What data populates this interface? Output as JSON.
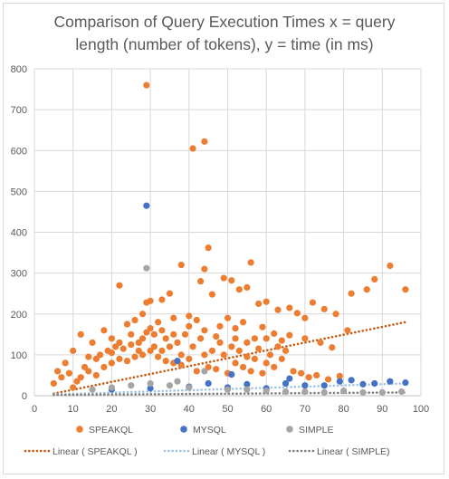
{
  "chart_data": {
    "type": "scatter",
    "title": "Comparison of Query Execution Times x = query length (number of tokens), y = time (in ms)",
    "title_lines": [
      "Comparison of Query Execution Times x = query",
      "length (number of tokens), y = time (in ms)"
    ],
    "xlabel": "",
    "ylabel": "",
    "xlim": [
      0,
      100
    ],
    "ylim": [
      0,
      800
    ],
    "xticks": [
      0,
      10,
      20,
      30,
      40,
      50,
      60,
      70,
      80,
      90,
      100
    ],
    "yticks": [
      0,
      100,
      200,
      300,
      400,
      500,
      600,
      700,
      800
    ],
    "grid": true,
    "legend_position": "bottom",
    "series": [
      {
        "name": "SPEAKQL",
        "color": "#ed7d31",
        "points": [
          [
            29,
            760
          ],
          [
            41,
            605
          ],
          [
            44,
            622
          ],
          [
            45,
            362
          ],
          [
            44,
            310
          ],
          [
            38,
            320
          ],
          [
            43,
            280
          ],
          [
            49,
            288
          ],
          [
            51,
            282
          ],
          [
            56,
            326
          ],
          [
            55,
            265
          ],
          [
            30,
            232
          ],
          [
            29,
            228
          ],
          [
            22,
            270
          ],
          [
            28,
            200
          ],
          [
            35,
            250
          ],
          [
            33,
            235
          ],
          [
            46,
            248
          ],
          [
            53,
            260
          ],
          [
            58,
            225
          ],
          [
            60,
            230
          ],
          [
            63,
            210
          ],
          [
            66,
            215
          ],
          [
            68,
            202
          ],
          [
            70,
            190
          ],
          [
            72,
            228
          ],
          [
            75,
            212
          ],
          [
            78,
            200
          ],
          [
            82,
            250
          ],
          [
            86,
            260
          ],
          [
            88,
            285
          ],
          [
            92,
            318
          ],
          [
            96,
            260
          ],
          [
            81,
            160
          ],
          [
            74,
            130
          ],
          [
            77,
            118
          ],
          [
            70,
            140
          ],
          [
            66,
            148
          ],
          [
            62,
            152
          ],
          [
            59,
            168
          ],
          [
            57,
            140
          ],
          [
            54,
            180
          ],
          [
            52,
            165
          ],
          [
            50,
            190
          ],
          [
            48,
            170
          ],
          [
            12,
            150
          ],
          [
            10,
            110
          ],
          [
            15,
            130
          ],
          [
            18,
            160
          ],
          [
            20,
            140
          ],
          [
            24,
            175
          ],
          [
            26,
            185
          ],
          [
            32,
            180
          ],
          [
            36,
            190
          ],
          [
            40,
            195
          ],
          [
            42,
            185
          ],
          [
            27,
            130
          ],
          [
            31,
            150
          ],
          [
            34,
            140
          ],
          [
            39,
            150
          ],
          [
            47,
            145
          ],
          [
            8,
            80
          ],
          [
            6,
            60
          ],
          [
            5,
            30
          ],
          [
            7,
            45
          ],
          [
            9,
            55
          ],
          [
            13,
            70
          ],
          [
            14,
            95
          ],
          [
            16,
            90
          ],
          [
            17,
            100
          ],
          [
            19,
            110
          ],
          [
            21,
            120
          ],
          [
            23,
            115
          ],
          [
            25,
            125
          ],
          [
            28,
            140
          ],
          [
            29,
            155
          ],
          [
            30,
            165
          ],
          [
            31,
            120
          ],
          [
            33,
            110
          ],
          [
            35,
            120
          ],
          [
            37,
            130
          ],
          [
            38,
            100
          ],
          [
            41,
            120
          ],
          [
            43,
            140
          ],
          [
            44,
            100
          ],
          [
            46,
            110
          ],
          [
            49,
            100
          ],
          [
            51,
            120
          ],
          [
            53,
            110
          ],
          [
            55,
            95
          ],
          [
            57,
            90
          ],
          [
            60,
            80
          ],
          [
            62,
            70
          ],
          [
            64,
            90
          ],
          [
            65,
            110
          ],
          [
            67,
            60
          ],
          [
            69,
            55
          ],
          [
            71,
            45
          ],
          [
            73,
            50
          ],
          [
            76,
            40
          ],
          [
            79,
            48
          ],
          [
            58,
            115
          ],
          [
            61,
            100
          ],
          [
            63,
            120
          ],
          [
            59,
            55
          ],
          [
            56,
            60
          ],
          [
            54,
            70
          ],
          [
            52,
            80
          ],
          [
            10,
            20
          ],
          [
            11,
            35
          ],
          [
            12,
            45
          ],
          [
            14,
            60
          ],
          [
            16,
            50
          ],
          [
            18,
            70
          ],
          [
            20,
            80
          ],
          [
            22,
            90
          ],
          [
            24,
            85
          ],
          [
            26,
            95
          ],
          [
            28,
            100
          ],
          [
            30,
            110
          ],
          [
            32,
            95
          ],
          [
            34,
            85
          ],
          [
            36,
            80
          ],
          [
            38,
            75
          ],
          [
            40,
            90
          ],
          [
            42,
            60
          ],
          [
            45,
            70
          ],
          [
            47,
            65
          ],
          [
            50,
            55
          ],
          [
            20,
            105
          ],
          [
            22,
            130
          ],
          [
            25,
            150
          ],
          [
            27,
            110
          ],
          [
            33,
            160
          ],
          [
            36,
            150
          ],
          [
            40,
            170
          ],
          [
            44,
            160
          ],
          [
            48,
            130
          ],
          [
            52,
            140
          ],
          [
            55,
            130
          ],
          [
            60,
            140
          ],
          [
            64,
            135
          ]
        ]
      },
      {
        "name": "MYSQL",
        "color": "#4472c4",
        "points": [
          [
            29,
            465
          ],
          [
            37,
            85
          ],
          [
            51,
            52
          ],
          [
            66,
            42
          ],
          [
            79,
            35
          ],
          [
            82,
            38
          ],
          [
            88,
            30
          ],
          [
            92,
            35
          ],
          [
            96,
            32
          ],
          [
            20,
            15
          ],
          [
            30,
            18
          ],
          [
            40,
            22
          ],
          [
            50,
            20
          ],
          [
            60,
            18
          ],
          [
            70,
            25
          ],
          [
            75,
            25
          ],
          [
            85,
            28
          ],
          [
            45,
            30
          ],
          [
            55,
            28
          ],
          [
            65,
            30
          ]
        ]
      },
      {
        "name": "SIMPLE",
        "color": "#a5a5a5",
        "points": [
          [
            29,
            312
          ],
          [
            44,
            60
          ],
          [
            37,
            35
          ],
          [
            30,
            30
          ],
          [
            25,
            25
          ],
          [
            15,
            15
          ],
          [
            50,
            15
          ],
          [
            60,
            12
          ],
          [
            70,
            10
          ],
          [
            80,
            12
          ],
          [
            90,
            8
          ],
          [
            95,
            10
          ],
          [
            20,
            20
          ],
          [
            35,
            25
          ],
          [
            40,
            20
          ],
          [
            55,
            15
          ],
          [
            65,
            10
          ],
          [
            75,
            8
          ],
          [
            85,
            8
          ]
        ]
      }
    ],
    "trendlines": [
      {
        "name": "Linear ( SPEAKQL )",
        "color": "#c55a11",
        "x": [
          5,
          96
        ],
        "y": [
          5,
          180
        ]
      },
      {
        "name": "Linear ( MYSQL )",
        "color": "#9dc3e6",
        "x": [
          5,
          96
        ],
        "y": [
          3,
          30
        ]
      },
      {
        "name": "Linear ( SIMPLE)",
        "color": "#7f7f7f",
        "x": [
          5,
          96
        ],
        "y": [
          2,
          8
        ]
      }
    ]
  }
}
